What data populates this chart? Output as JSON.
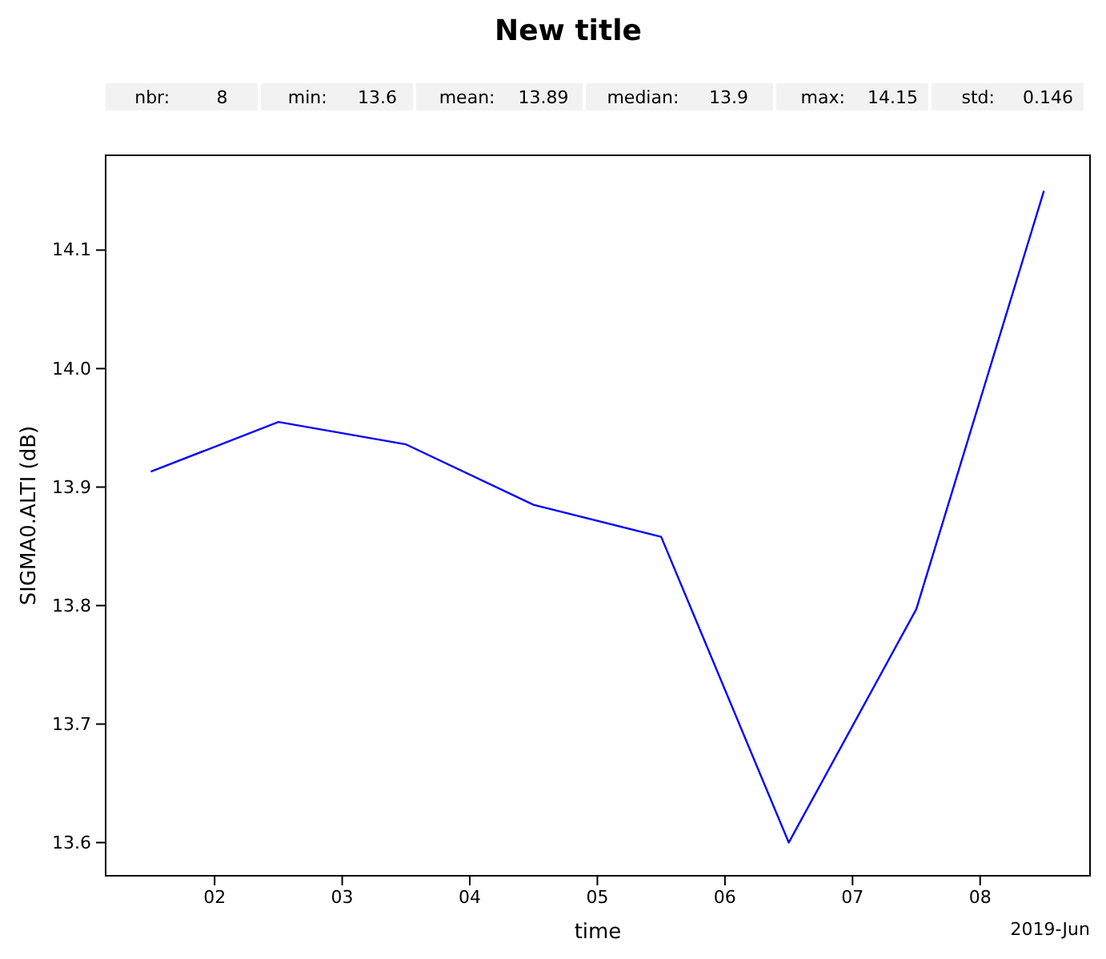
{
  "chart_data": {
    "type": "line",
    "title": "New title",
    "xlabel": "time",
    "ylabel": "SIGMA0.ALTI (dB)",
    "x": [
      "2019-06-01T12:00",
      "2019-06-02T12:00",
      "2019-06-03T12:00",
      "2019-06-04T12:00",
      "2019-06-05T12:00",
      "2019-06-06T12:00",
      "2019-06-07T12:00",
      "2019-06-08T12:00"
    ],
    "series": [
      {
        "color": "#0000ff",
        "values": [
          13.913,
          13.955,
          13.936,
          13.885,
          13.858,
          13.6,
          13.797,
          14.15
        ]
      }
    ],
    "xlim": [
      "2019-06-01T03:30",
      "2019-06-08T20:40"
    ],
    "xticks": [
      {
        "value": "2019-06-02",
        "label": "02"
      },
      {
        "value": "2019-06-03",
        "label": "03"
      },
      {
        "value": "2019-06-04",
        "label": "04"
      },
      {
        "value": "2019-06-05",
        "label": "05"
      },
      {
        "value": "2019-06-06",
        "label": "06"
      },
      {
        "value": "2019-06-07",
        "label": "07"
      },
      {
        "value": "2019-06-08",
        "label": "08"
      }
    ],
    "ylim": [
      13.572,
      14.18
    ],
    "yticks": [
      {
        "value": 13.6,
        "label": "13.6"
      },
      {
        "value": 13.7,
        "label": "13.7"
      },
      {
        "value": 13.8,
        "label": "13.8"
      },
      {
        "value": 13.9,
        "label": "13.9"
      },
      {
        "value": 14.0,
        "label": "14.0"
      },
      {
        "value": 14.1,
        "label": "14.1"
      }
    ],
    "grid": false,
    "marker": "none",
    "line_style": "solid",
    "annotations": [
      "nbr:",
      "8",
      "min:",
      "13.6",
      "mean:",
      "13.89",
      "median:",
      "13.9",
      "max:",
      "14.15",
      "std:",
      "0.146",
      "2019-Jun"
    ]
  }
}
